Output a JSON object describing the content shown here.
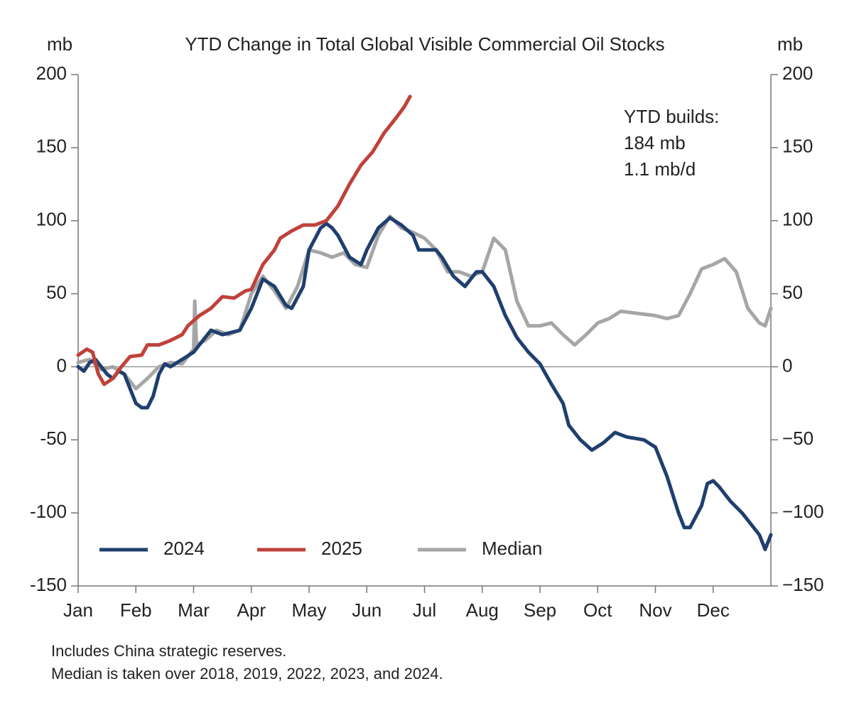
{
  "chart_data": {
    "type": "line",
    "title": "YTD Change in Total Global Visible Commercial Oil Stocks",
    "y_label": "mb",
    "y2_label": "mb",
    "annotation": [
      "YTD builds:",
      "184 mb",
      "1.1 mb/d"
    ],
    "notes": [
      "Includes China strategic reserves.",
      "Median is taken over 2018, 2019, 2022, 2023, and 2024."
    ],
    "xlim": [
      0,
      12
    ],
    "xticks": [
      {
        "value": 0,
        "label": "Jan"
      },
      {
        "value": 1,
        "label": "Feb"
      },
      {
        "value": 2,
        "label": "Mar"
      },
      {
        "value": 3,
        "label": "Apr"
      },
      {
        "value": 4,
        "label": "May"
      },
      {
        "value": 5,
        "label": "Jun"
      },
      {
        "value": 6,
        "label": "Jul"
      },
      {
        "value": 7,
        "label": "Aug"
      },
      {
        "value": 8,
        "label": "Sep"
      },
      {
        "value": 9,
        "label": "Oct"
      },
      {
        "value": 10,
        "label": "Nov"
      },
      {
        "value": 11,
        "label": "Dec"
      }
    ],
    "ylim": [
      -150,
      200
    ],
    "yticks": [
      {
        "value": -150,
        "label": "-150"
      },
      {
        "value": -100,
        "label": "-100"
      },
      {
        "value": -50,
        "label": "-50"
      },
      0,
      50,
      100,
      150,
      200
    ],
    "y2lim": [
      -150,
      200
    ],
    "y2ticks": [
      {
        "value": -150,
        "label": "−150"
      },
      {
        "value": -100,
        "label": "−100"
      },
      {
        "value": -50,
        "label": "−50"
      },
      0,
      50,
      100,
      150,
      200
    ],
    "legend": "lower left",
    "series": [
      {
        "name": "2024",
        "color": "#1f3f6e",
        "x": [
          0,
          0.1,
          0.2,
          0.3,
          0.4,
          0.5,
          0.6,
          0.7,
          0.8,
          0.9,
          1.0,
          1.1,
          1.2,
          1.3,
          1.4,
          1.5,
          1.6,
          1.8,
          2.0,
          2.1,
          2.3,
          2.5,
          2.8,
          3.0,
          3.2,
          3.4,
          3.6,
          3.7,
          3.9,
          4.0,
          4.2,
          4.3,
          4.4,
          4.5,
          4.7,
          4.9,
          5.0,
          5.2,
          5.4,
          5.6,
          5.8,
          5.9,
          6.0,
          6.2,
          6.3,
          6.5,
          6.7,
          6.9,
          7.0,
          7.2,
          7.4,
          7.6,
          7.8,
          8.0,
          8.2,
          8.4,
          8.5,
          8.7,
          8.9,
          9.1,
          9.3,
          9.5,
          9.8,
          10.0,
          10.2,
          10.4,
          10.5,
          10.6,
          10.8,
          10.9,
          11.0,
          11.1,
          11.3,
          11.5,
          11.8,
          11.9,
          12.0
        ],
        "values": [
          0,
          -3,
          3,
          5,
          0,
          -5,
          -8,
          -3,
          -5,
          -15,
          -25,
          -28,
          -28,
          -20,
          -5,
          2,
          0,
          5,
          10,
          15,
          25,
          22,
          25,
          40,
          60,
          55,
          42,
          40,
          55,
          80,
          95,
          98,
          95,
          90,
          75,
          70,
          80,
          95,
          102,
          97,
          90,
          80,
          80,
          80,
          75,
          62,
          55,
          65,
          65,
          55,
          35,
          20,
          10,
          2,
          -12,
          -25,
          -40,
          -50,
          -57,
          -52,
          -45,
          -48,
          -50,
          -55,
          -75,
          -100,
          -110,
          -110,
          -95,
          -80,
          -78,
          -82,
          -92,
          -100,
          -115,
          -125,
          -115
        ]
      },
      {
        "name": "2025",
        "color": "#c0413b",
        "x": [
          0,
          0.15,
          0.25,
          0.35,
          0.45,
          0.6,
          0.75,
          0.9,
          1.1,
          1.2,
          1.4,
          1.6,
          1.8,
          1.9,
          2.1,
          2.3,
          2.5,
          2.7,
          2.9,
          3.0,
          3.2,
          3.4,
          3.5,
          3.7,
          3.9,
          4.1,
          4.3,
          4.5,
          4.7,
          4.9,
          5.1,
          5.3,
          5.5,
          5.65,
          5.75
        ],
        "values": [
          8,
          12,
          10,
          -5,
          -12,
          -8,
          0,
          7,
          8,
          15,
          15,
          18,
          22,
          28,
          35,
          40,
          48,
          47,
          52,
          53,
          70,
          80,
          88,
          93,
          97,
          97,
          100,
          110,
          125,
          138,
          147,
          160,
          170,
          178,
          185
        ]
      },
      {
        "name": "Median",
        "color": "#a6a6a6",
        "x": [
          0,
          0.2,
          0.4,
          0.6,
          0.8,
          1.0,
          1.2,
          1.4,
          1.6,
          1.8,
          2.0,
          2.02,
          2.05,
          2.2,
          2.4,
          2.6,
          2.8,
          3.0,
          3.2,
          3.4,
          3.6,
          3.8,
          4.0,
          4.2,
          4.4,
          4.6,
          4.8,
          5.0,
          5.2,
          5.4,
          5.6,
          5.8,
          6.0,
          6.2,
          6.4,
          6.6,
          6.8,
          7.0,
          7.2,
          7.4,
          7.6,
          7.8,
          8.0,
          8.2,
          8.4,
          8.6,
          8.8,
          9.0,
          9.2,
          9.4,
          9.6,
          9.8,
          10.0,
          10.2,
          10.4,
          10.6,
          10.8,
          11.0,
          11.2,
          11.4,
          11.6,
          11.8,
          11.9,
          12.0
        ],
        "values": [
          3,
          5,
          -2,
          0,
          -5,
          -15,
          -8,
          0,
          3,
          2,
          12,
          45,
          15,
          18,
          25,
          22,
          25,
          50,
          62,
          52,
          40,
          55,
          80,
          78,
          75,
          78,
          70,
          68,
          90,
          103,
          95,
          92,
          88,
          80,
          65,
          65,
          62,
          65,
          88,
          80,
          45,
          28,
          28,
          30,
          22,
          15,
          22,
          30,
          33,
          38,
          37,
          36,
          35,
          33,
          35,
          50,
          67,
          70,
          74,
          65,
          40,
          30,
          28,
          40
        ]
      }
    ]
  }
}
